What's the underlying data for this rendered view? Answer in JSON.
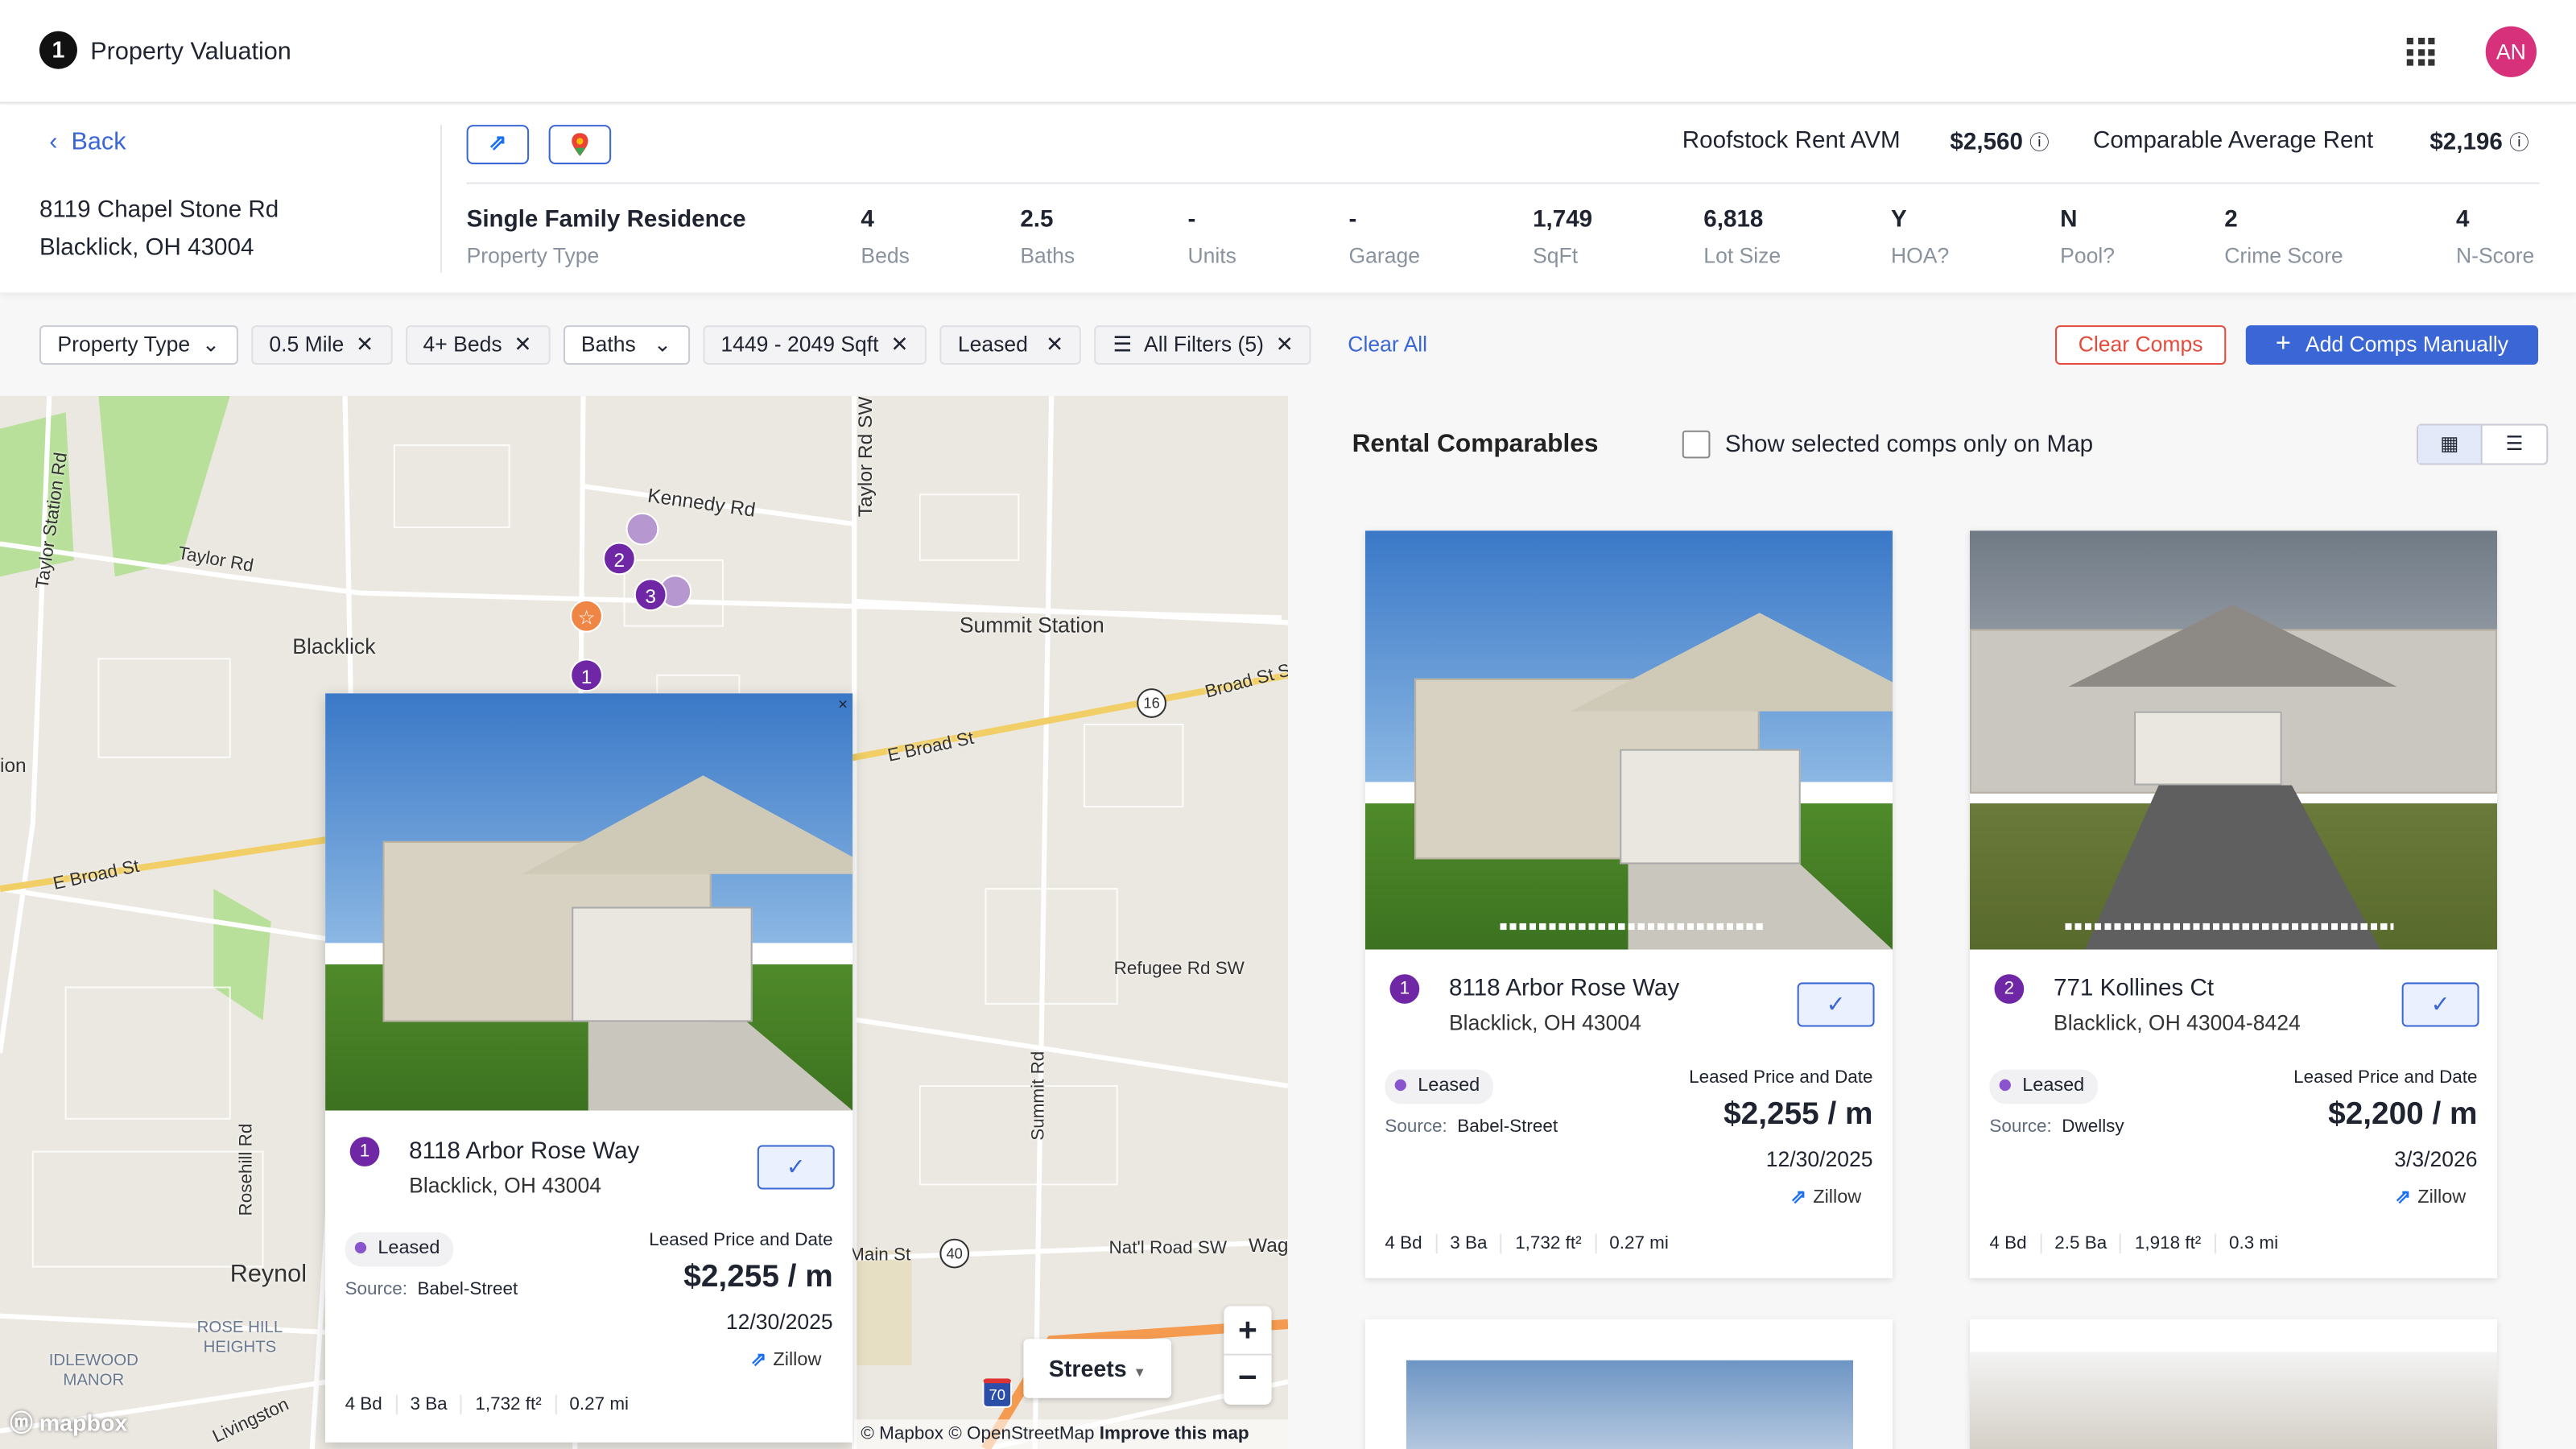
{
  "app": {
    "title": "Property Valuation",
    "logo_text": "1",
    "avatar": "AN"
  },
  "header": {
    "back": "Back",
    "address_line1": "8119 Chapel Stone Rd",
    "address_line2": "Blacklick, OH 43004",
    "icons": [
      "zillow-icon",
      "google-maps-icon"
    ],
    "avm_label": "Roofstock Rent AVM",
    "avm_value": "$2,560",
    "comp_label": "Comparable Average Rent",
    "comp_value": "$2,196",
    "stats": [
      {
        "value": "Single Family Residence",
        "label": "Property Type"
      },
      {
        "value": "4",
        "label": "Beds"
      },
      {
        "value": "2.5",
        "label": "Baths"
      },
      {
        "value": "-",
        "label": "Units"
      },
      {
        "value": "-",
        "label": "Garage"
      },
      {
        "value": "1,749",
        "label": "SqFt"
      },
      {
        "value": "6,818",
        "label": "Lot Size"
      },
      {
        "value": "Y",
        "label": "HOA?"
      },
      {
        "value": "N",
        "label": "Pool?"
      },
      {
        "value": "2",
        "label": "Crime Score"
      },
      {
        "value": "4",
        "label": "N-Score"
      }
    ]
  },
  "filters": {
    "chips": [
      {
        "label": "Property Type",
        "type": "dropdown"
      },
      {
        "label": "0.5 Mile",
        "type": "removable"
      },
      {
        "label": "4+ Beds",
        "type": "removable"
      },
      {
        "label": "Baths",
        "type": "dropdown"
      },
      {
        "label": "1449 - 2049 Sqft",
        "type": "removable"
      },
      {
        "label": "Leased",
        "type": "removable"
      },
      {
        "label": "All Filters (5)",
        "type": "removable"
      }
    ],
    "clear_all": "Clear All",
    "clear_comps": "Clear Comps",
    "add_comps": "Add Comps Manually"
  },
  "map": {
    "labels": {
      "kennedy": "Kennedy Rd",
      "taylor_sw": "Taylor Rd SW",
      "taylor_station": "Taylor Station Rd",
      "taylor": "Taylor Rd",
      "blacklick": "Blacklick",
      "summit_station": "Summit Station",
      "broad": "Broad St S",
      "ebroad": "E Broad St",
      "ebroad2": "E Broad St",
      "refugee": "Refugee Rd SW",
      "summit_rd": "Summit Rd",
      "rosehill": "Rosehill Rd",
      "reynol": "Reynol",
      "rosehill_heights": "ROSE HILL HEIGHTS",
      "idlewood": "IDLEWOOD MANOR",
      "main_st": "Main St",
      "natl": "Nat'l Road SW",
      "wag": "Wag",
      "livingston": "Livingston",
      "ion": "ion",
      "route16": "16",
      "route40": "40",
      "route70": "70"
    },
    "pins": [
      "1",
      "2",
      "3"
    ],
    "style_select": "Streets",
    "zoom_in": "+",
    "zoom_out": "−",
    "attribution": "© Mapbox © OpenStreetMap",
    "improve": "Improve this map",
    "mapbox_logo": "mapbox",
    "popup": {
      "close": "×",
      "num": "1",
      "title": "8118 Arbor Rose Way",
      "subtitle": "Blacklick, OH 43004",
      "status": "Leased",
      "source_label": "Source:",
      "source": "Babel-Street",
      "price_label": "Leased Price and Date",
      "price": "$2,255 / m",
      "date": "12/30/2025",
      "link": "Zillow",
      "facts": [
        "4 Bd",
        "3 Ba",
        "1,732 ft²",
        "0.27 mi"
      ]
    }
  },
  "comps": {
    "title": "Rental Comparables",
    "show_selected": "Show selected comps only on Map",
    "show_selected_checked": false,
    "view": "grid",
    "cards": [
      {
        "num": "1",
        "title": "8118 Arbor Rose Way",
        "subtitle": "Blacklick, OH 43004",
        "status": "Leased",
        "source_label": "Source:",
        "source": "Babel-Street",
        "price_label": "Leased Price and Date",
        "price": "$2,255 / m",
        "date": "12/30/2025",
        "link": "Zillow",
        "facts": [
          "4 Bd",
          "3 Ba",
          "1,732 ft²",
          "0.27 mi"
        ],
        "selected": true
      },
      {
        "num": "2",
        "title": "771 Kollines Ct",
        "subtitle": "Blacklick, OH 43004-8424",
        "status": "Leased",
        "source_label": "Source:",
        "source": "Dwellsy",
        "price_label": "Leased Price and Date",
        "price": "$2,200 / m",
        "date": "3/3/2026",
        "link": "Zillow",
        "facts": [
          "4 Bd",
          "2.5 Ba",
          "1,918 ft²",
          "0.3 mi"
        ],
        "selected": true
      }
    ]
  },
  "colors": {
    "accent": "#3a66d6",
    "pin": "#6f27a5",
    "danger": "#e44b3d",
    "avatar": "#d6317a",
    "subject_pin": "#f08646"
  }
}
